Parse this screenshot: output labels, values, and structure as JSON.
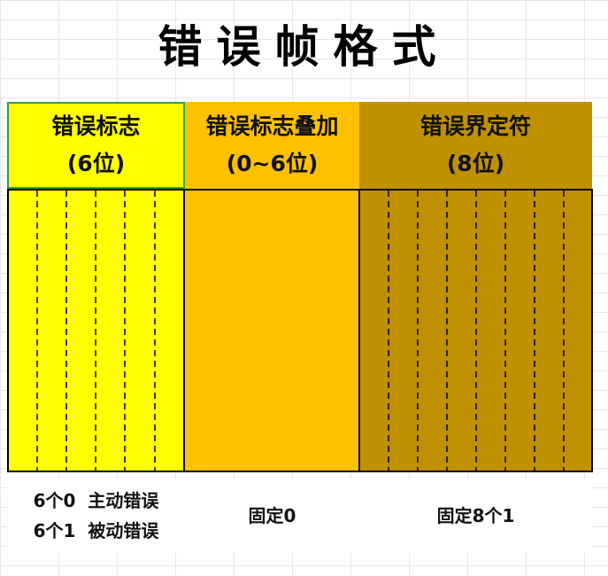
{
  "title": "错误帧格式",
  "fields": [
    {
      "name": "错误标志",
      "size": "(6位)",
      "desc_line1": "6个0  主动错误",
      "desc_line2": "6个1  被动错误",
      "divisions": 6,
      "color": "#ffff00"
    },
    {
      "name": "错误标志叠加",
      "size": "(0~6位)",
      "desc_line1": "固定0",
      "desc_line2": "",
      "divisions": 0,
      "color": "#ffc000"
    },
    {
      "name": "错误界定符",
      "size": "(8位)",
      "desc_line1": "固定8个1",
      "desc_line2": "",
      "divisions": 8,
      "color": "#bf9000"
    }
  ]
}
